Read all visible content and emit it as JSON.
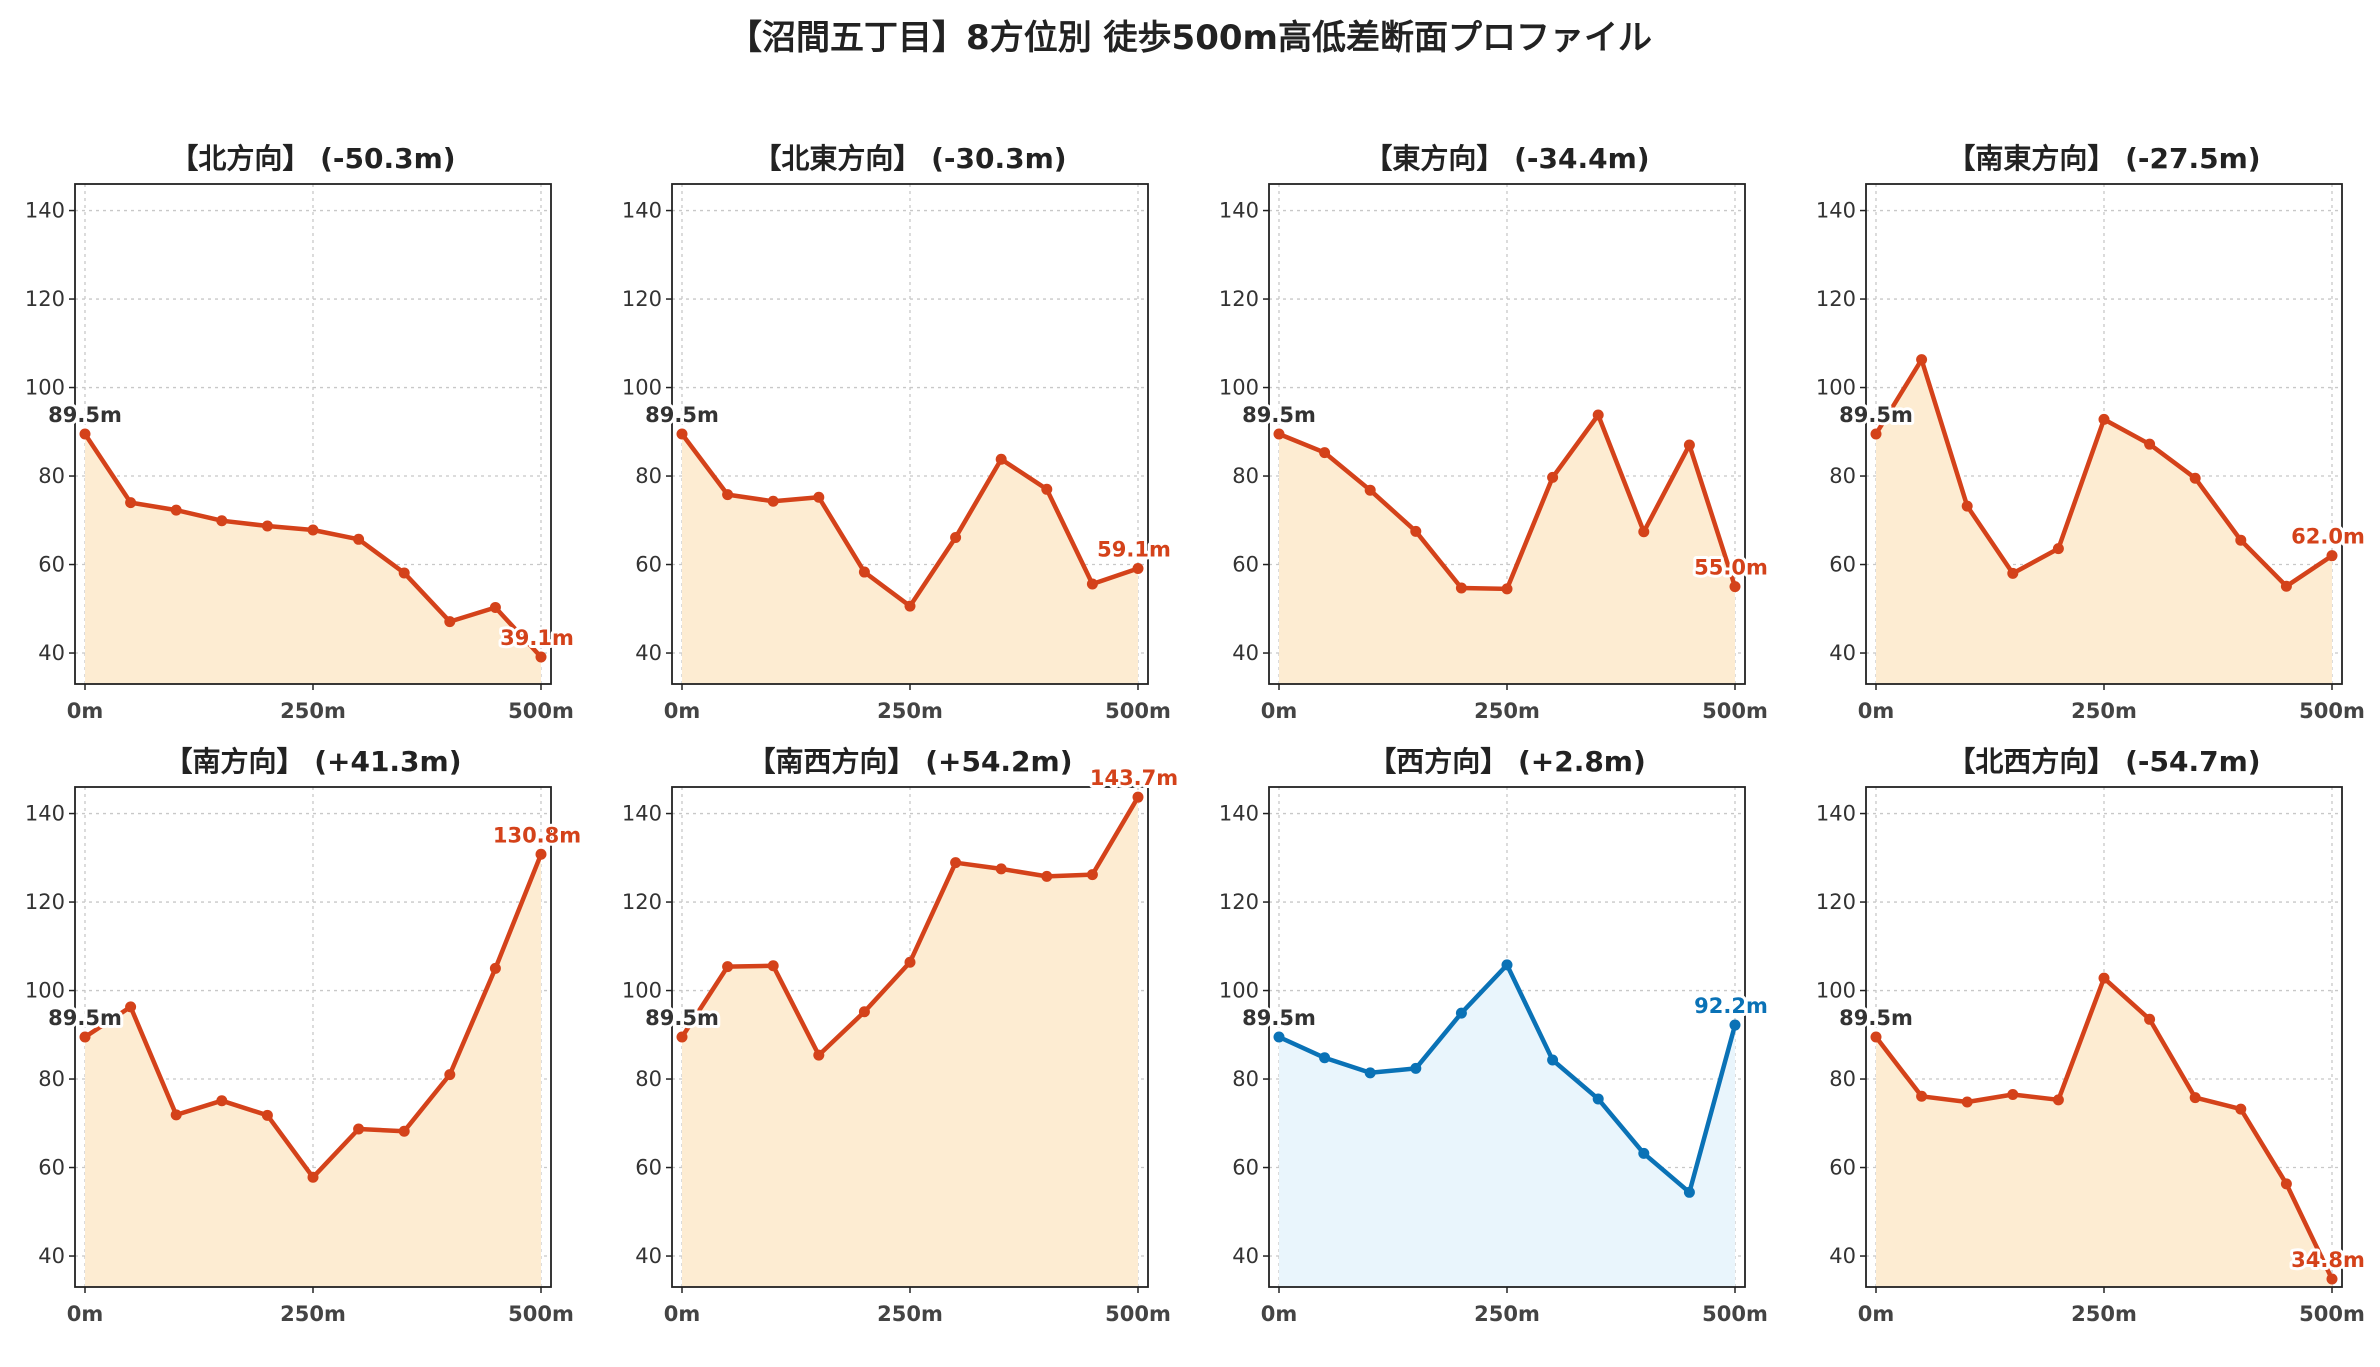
{
  "title": "【沼間五丁目】8方位別 徒歩500m高低差断面プロファイル",
  "colors": {
    "down_line": "#d4421a",
    "down_fill": "#fdecd2",
    "up_line": "#0a72b6",
    "up_fill": "#e9f5fc",
    "grid": "#c8c8c8",
    "start_label": "#333333"
  },
  "chart_data": [
    {
      "type": "line",
      "title": "【北方向】 (-50.3m)",
      "x": [
        0,
        50,
        100,
        150,
        200,
        250,
        300,
        350,
        400,
        450,
        500
      ],
      "values": [
        89.5,
        74.0,
        72.3,
        69.9,
        68.7,
        67.8,
        65.7,
        58.1,
        47.1,
        50.3,
        39.1
      ],
      "xtick_labels": [
        "0m",
        "250m",
        "500m"
      ],
      "ylim": [
        33,
        146
      ],
      "yticks": [
        "40",
        "60",
        "80",
        "100",
        "120",
        "140"
      ],
      "start_label": "89.5m",
      "end_label": "39.1m",
      "style": "down",
      "grid": true
    },
    {
      "type": "line",
      "title": "【北東方向】 (-30.3m)",
      "x": [
        0,
        50,
        100,
        150,
        200,
        250,
        300,
        350,
        400,
        450,
        500
      ],
      "values": [
        89.5,
        75.8,
        74.3,
        75.2,
        58.3,
        50.6,
        66.1,
        83.8,
        77.0,
        55.6,
        59.1
      ],
      "xtick_labels": [
        "0m",
        "250m",
        "500m"
      ],
      "ylim": [
        33,
        146
      ],
      "yticks": [
        "40",
        "60",
        "80",
        "100",
        "120",
        "140"
      ],
      "start_label": "89.5m",
      "end_label": "59.1m",
      "style": "down",
      "grid": true
    },
    {
      "type": "line",
      "title": "【東方向】 (-34.4m)",
      "x": [
        0,
        50,
        100,
        150,
        200,
        250,
        300,
        350,
        400,
        450,
        500
      ],
      "values": [
        89.5,
        85.3,
        76.8,
        67.5,
        54.7,
        54.5,
        79.7,
        93.8,
        67.4,
        87.0,
        55.0
      ],
      "xtick_labels": [
        "0m",
        "250m",
        "500m"
      ],
      "ylim": [
        33,
        146
      ],
      "yticks": [
        "40",
        "60",
        "80",
        "100",
        "120",
        "140"
      ],
      "start_label": "89.5m",
      "end_label": "55.0m",
      "style": "down",
      "grid": true
    },
    {
      "type": "line",
      "title": "【南東方向】 (-27.5m)",
      "x": [
        0,
        50,
        100,
        150,
        200,
        250,
        300,
        350,
        400,
        450,
        500
      ],
      "values": [
        89.5,
        106.3,
        73.2,
        58.0,
        63.6,
        92.8,
        87.2,
        79.5,
        65.5,
        55.1,
        62.0
      ],
      "xtick_labels": [
        "0m",
        "250m",
        "500m"
      ],
      "ylim": [
        33,
        146
      ],
      "yticks": [
        "40",
        "60",
        "80",
        "100",
        "120",
        "140"
      ],
      "start_label": "89.5m",
      "end_label": "62.0m",
      "style": "down",
      "grid": true
    },
    {
      "type": "line",
      "title": "【南方向】 (+41.3m)",
      "x": [
        0,
        50,
        100,
        150,
        200,
        250,
        300,
        350,
        400,
        450,
        500
      ],
      "values": [
        89.5,
        96.3,
        71.9,
        75.1,
        71.8,
        57.8,
        68.7,
        68.2,
        81.0,
        105.0,
        130.8
      ],
      "xtick_labels": [
        "0m",
        "250m",
        "500m"
      ],
      "ylim": [
        33,
        146
      ],
      "yticks": [
        "40",
        "60",
        "80",
        "100",
        "120",
        "140"
      ],
      "start_label": "89.5m",
      "end_label": "130.8m",
      "style": "down",
      "grid": true
    },
    {
      "type": "line",
      "title": "【南西方向】 (+54.2m)",
      "x": [
        0,
        50,
        100,
        150,
        200,
        250,
        300,
        350,
        400,
        450,
        500
      ],
      "values": [
        89.5,
        105.4,
        105.6,
        85.4,
        95.2,
        106.4,
        128.9,
        127.5,
        125.8,
        126.2,
        143.7
      ],
      "xtick_labels": [
        "0m",
        "250m",
        "500m"
      ],
      "ylim": [
        33,
        146
      ],
      "yticks": [
        "40",
        "60",
        "80",
        "100",
        "120",
        "140"
      ],
      "start_label": "89.5m",
      "end_label": "143.7m",
      "style": "down",
      "grid": true
    },
    {
      "type": "line",
      "title": "【西方向】 (+2.8m)",
      "x": [
        0,
        50,
        100,
        150,
        200,
        250,
        300,
        350,
        400,
        450,
        500
      ],
      "values": [
        89.5,
        84.8,
        81.4,
        82.4,
        94.9,
        105.8,
        84.3,
        75.5,
        63.2,
        54.4,
        92.2
      ],
      "xtick_labels": [
        "0m",
        "250m",
        "500m"
      ],
      "ylim": [
        33,
        146
      ],
      "yticks": [
        "40",
        "60",
        "80",
        "100",
        "120",
        "140"
      ],
      "start_label": "89.5m",
      "end_label": "92.2m",
      "style": "up",
      "grid": true
    },
    {
      "type": "line",
      "title": "【北西方向】 (-54.7m)",
      "x": [
        0,
        50,
        100,
        150,
        200,
        250,
        300,
        350,
        400,
        450,
        500
      ],
      "values": [
        89.5,
        76.1,
        74.8,
        76.5,
        75.3,
        102.8,
        93.5,
        75.8,
        73.2,
        56.3,
        34.8
      ],
      "xtick_labels": [
        "0m",
        "250m",
        "500m"
      ],
      "ylim": [
        33,
        146
      ],
      "yticks": [
        "40",
        "60",
        "80",
        "100",
        "120",
        "140"
      ],
      "start_label": "89.5m",
      "end_label": "34.8m",
      "style": "down",
      "grid": true
    }
  ]
}
